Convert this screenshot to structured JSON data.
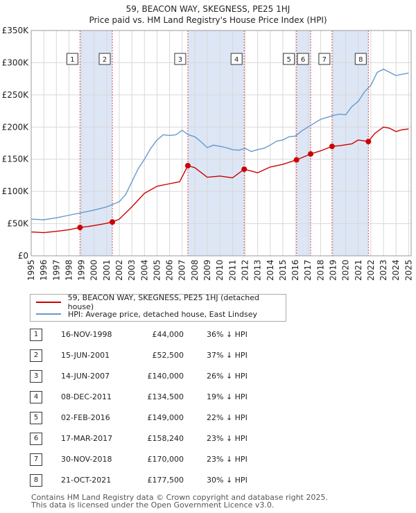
{
  "title": "59, BEACON WAY, SKEGNESS, PE25 1HJ",
  "subtitle": "Price paid vs. HM Land Registry's House Price Index (HPI)",
  "chart_data": {
    "type": "line",
    "y_ticks": [
      "£0",
      "£50K",
      "£100K",
      "£150K",
      "£200K",
      "£250K",
      "£300K",
      "£350K"
    ],
    "y_tick_values": [
      0,
      50000,
      100000,
      150000,
      200000,
      250000,
      300000,
      350000
    ],
    "x_ticks": [
      "1995",
      "1996",
      "1997",
      "1998",
      "1999",
      "2000",
      "2001",
      "2002",
      "2003",
      "2004",
      "2005",
      "2006",
      "2007",
      "2008",
      "2009",
      "2010",
      "2011",
      "2012",
      "2013",
      "2014",
      "2015",
      "2016",
      "2017",
      "2018",
      "2019",
      "2020",
      "2021",
      "2022",
      "2023",
      "2024",
      "2025"
    ],
    "xlim": [
      1995,
      2025.2
    ],
    "ylim": [
      0,
      350000
    ],
    "grid": true,
    "colors": {
      "price": "#cc0000",
      "hpi": "#6699cc",
      "band": "#dde6f5",
      "vline": "#cc0000"
    },
    "series": [
      {
        "name": "59, BEACON WAY, SKEGNESS, PE25 1HJ (detached house)",
        "color": "#cc0000",
        "points": [
          [
            1995.0,
            37000
          ],
          [
            1996.0,
            36000
          ],
          [
            1997.0,
            38000
          ],
          [
            1998.0,
            40500
          ],
          [
            1998.88,
            44000
          ],
          [
            1999.5,
            45500
          ],
          [
            2000.3,
            48000
          ],
          [
            2001.0,
            50500
          ],
          [
            2001.45,
            52500
          ],
          [
            2002.0,
            57000
          ],
          [
            2003.0,
            76000
          ],
          [
            2004.0,
            97000
          ],
          [
            2005.0,
            108000
          ],
          [
            2006.0,
            112000
          ],
          [
            2006.8,
            115000
          ],
          [
            2007.45,
            140000
          ],
          [
            2008.0,
            137000
          ],
          [
            2009.0,
            122000
          ],
          [
            2010.0,
            124000
          ],
          [
            2011.0,
            121000
          ],
          [
            2011.93,
            134500
          ],
          [
            2013.0,
            129000
          ],
          [
            2014.0,
            138000
          ],
          [
            2015.0,
            142000
          ],
          [
            2016.09,
            149000
          ],
          [
            2017.21,
            158240
          ],
          [
            2018.0,
            163000
          ],
          [
            2018.91,
            170000
          ],
          [
            2019.5,
            171000
          ],
          [
            2020.5,
            174000
          ],
          [
            2021.0,
            180000
          ],
          [
            2021.8,
            177500
          ],
          [
            2022.3,
            190000
          ],
          [
            2023.0,
            200000
          ],
          [
            2023.5,
            198000
          ],
          [
            2024.0,
            193000
          ],
          [
            2024.5,
            196000
          ],
          [
            2025.0,
            197000
          ]
        ]
      },
      {
        "name": "HPI: Average price, detached house, East Lindsey",
        "color": "#6699cc",
        "points": [
          [
            1995.0,
            57000
          ],
          [
            1996.0,
            56000
          ],
          [
            1997.0,
            59000
          ],
          [
            1998.0,
            63000
          ],
          [
            1999.0,
            67000
          ],
          [
            2000.0,
            71000
          ],
          [
            2001.0,
            76000
          ],
          [
            2002.0,
            84000
          ],
          [
            2002.5,
            95000
          ],
          [
            2003.0,
            115000
          ],
          [
            2003.5,
            135000
          ],
          [
            2004.0,
            150000
          ],
          [
            2004.5,
            167000
          ],
          [
            2005.0,
            180000
          ],
          [
            2005.5,
            188000
          ],
          [
            2006.0,
            187000
          ],
          [
            2006.5,
            188000
          ],
          [
            2007.0,
            195000
          ],
          [
            2007.5,
            188000
          ],
          [
            2008.0,
            185000
          ],
          [
            2008.5,
            177000
          ],
          [
            2009.0,
            168000
          ],
          [
            2009.5,
            172000
          ],
          [
            2010.0,
            170000
          ],
          [
            2010.5,
            168000
          ],
          [
            2011.0,
            165000
          ],
          [
            2011.5,
            164000
          ],
          [
            2012.0,
            167000
          ],
          [
            2012.5,
            162000
          ],
          [
            2013.0,
            165000
          ],
          [
            2013.5,
            167000
          ],
          [
            2014.0,
            172000
          ],
          [
            2014.5,
            178000
          ],
          [
            2015.0,
            180000
          ],
          [
            2015.5,
            185000
          ],
          [
            2016.0,
            186000
          ],
          [
            2016.5,
            194000
          ],
          [
            2017.0,
            200000
          ],
          [
            2017.5,
            206000
          ],
          [
            2018.0,
            212000
          ],
          [
            2018.5,
            215000
          ],
          [
            2019.0,
            218000
          ],
          [
            2019.5,
            220000
          ],
          [
            2020.0,
            219000
          ],
          [
            2020.5,
            232000
          ],
          [
            2021.0,
            240000
          ],
          [
            2021.5,
            255000
          ],
          [
            2022.0,
            265000
          ],
          [
            2022.5,
            285000
          ],
          [
            2023.0,
            290000
          ],
          [
            2023.5,
            285000
          ],
          [
            2024.0,
            280000
          ],
          [
            2024.5,
            282000
          ],
          [
            2025.0,
            284000
          ]
        ]
      }
    ],
    "shaded_bands": [
      [
        1998.88,
        2001.45
      ],
      [
        2007.45,
        2011.93
      ],
      [
        2016.09,
        2017.21
      ],
      [
        2018.91,
        2021.8
      ]
    ],
    "markers": [
      {
        "label": "1",
        "x": 1998.88,
        "y": 44000
      },
      {
        "label": "2",
        "x": 2001.45,
        "y": 52500
      },
      {
        "label": "3",
        "x": 2007.45,
        "y": 140000
      },
      {
        "label": "4",
        "x": 2011.93,
        "y": 134500
      },
      {
        "label": "5",
        "x": 2016.09,
        "y": 149000
      },
      {
        "label": "6",
        "x": 2017.21,
        "y": 158240
      },
      {
        "label": "7",
        "x": 2018.91,
        "y": 170000
      },
      {
        "label": "8",
        "x": 2021.8,
        "y": 177500
      }
    ]
  },
  "legend": {
    "price_label": "59, BEACON WAY, SKEGNESS, PE25 1HJ (detached house)",
    "hpi_label": "HPI: Average price, detached house, East Lindsey"
  },
  "transactions": [
    {
      "num": "1",
      "date": "16-NOV-1998",
      "price": "£44,000",
      "hpi": "36% ↓ HPI"
    },
    {
      "num": "2",
      "date": "15-JUN-2001",
      "price": "£52,500",
      "hpi": "37% ↓ HPI"
    },
    {
      "num": "3",
      "date": "14-JUN-2007",
      "price": "£140,000",
      "hpi": "26% ↓ HPI"
    },
    {
      "num": "4",
      "date": "08-DEC-2011",
      "price": "£134,500",
      "hpi": "19% ↓ HPI"
    },
    {
      "num": "5",
      "date": "02-FEB-2016",
      "price": "£149,000",
      "hpi": "22% ↓ HPI"
    },
    {
      "num": "6",
      "date": "17-MAR-2017",
      "price": "£158,240",
      "hpi": "23% ↓ HPI"
    },
    {
      "num": "7",
      "date": "30-NOV-2018",
      "price": "£170,000",
      "hpi": "23% ↓ HPI"
    },
    {
      "num": "8",
      "date": "21-OCT-2021",
      "price": "£177,500",
      "hpi": "30% ↓ HPI"
    }
  ],
  "footer": {
    "line1": "Contains HM Land Registry data © Crown copyright and database right 2025.",
    "line2": "This data is licensed under the Open Government Licence v3.0."
  }
}
